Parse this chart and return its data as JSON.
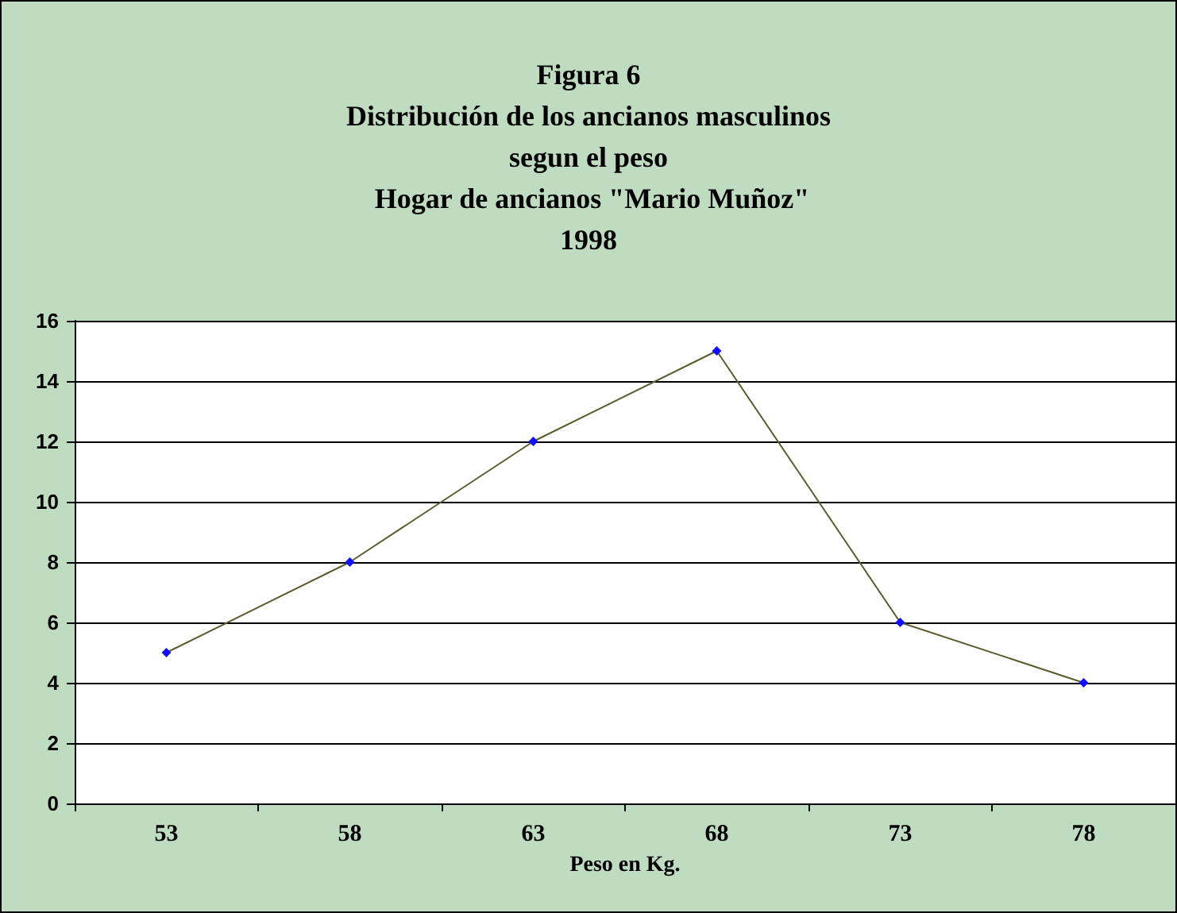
{
  "chart_data": {
    "type": "line",
    "title": "Figura 6\nDistribución de los ancianos masculinos\nsegun el peso\n Hogar de ancianos \"Mario Muñoz\"\n1998",
    "xlabel": "Peso en Kg.",
    "categories": [
      "53",
      "58",
      "63",
      "68",
      "73",
      "78"
    ],
    "series": [
      {
        "color": "#5c5c2e",
        "values": [
          5,
          8,
          12,
          15,
          6,
          4
        ]
      }
    ],
    "ylim": [
      0,
      16
    ],
    "yticks": [
      0,
      2,
      4,
      6,
      8,
      10,
      12,
      14,
      16
    ],
    "grid": "y",
    "marker": "diamond",
    "line_style": "solid"
  }
}
